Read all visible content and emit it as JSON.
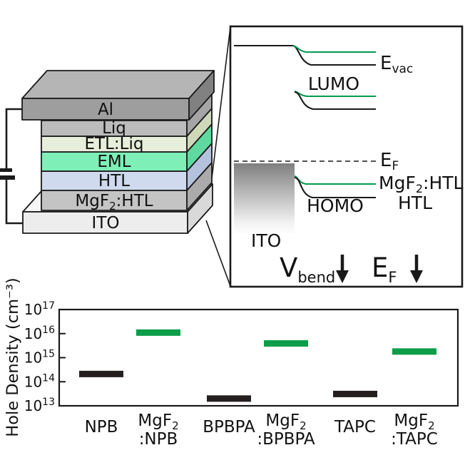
{
  "figure": {
    "background": "#ffffff"
  },
  "colors": {
    "outline": "#1a1a1a",
    "band_green": "#009b4f",
    "bar_green": "#0b9d4a",
    "bar_black": "#241e1e"
  },
  "device": {
    "layers": [
      {
        "pre": "Al",
        "sub": "",
        "post": "",
        "front": "#9e9e9e",
        "side": "#818181",
        "top": "#b5b5b5"
      },
      {
        "pre": "Liq",
        "sub": "",
        "post": "",
        "front": "#bcbcbc",
        "side": "#a5a5a5"
      },
      {
        "pre": "ETL:Liq",
        "sub": "",
        "post": "",
        "front": "#e7eed9",
        "side": "#cfd9ba"
      },
      {
        "pre": "EML",
        "sub": "",
        "post": "",
        "front": "#7defb7",
        "side": "#5fd9a0"
      },
      {
        "pre": "HTL",
        "sub": "",
        "post": "",
        "front": "#cfdaee",
        "side": "#b4c2de"
      },
      {
        "pre": "MgF",
        "sub": "2",
        "post": ":HTL",
        "front": "#c4c4c4",
        "side": "#ababab"
      },
      {
        "pre": "ITO",
        "sub": "",
        "post": "",
        "front": "#ededed",
        "side": "#d9d9d9",
        "top": "#f6f6f6"
      }
    ]
  },
  "inset": {
    "evac_pre": "E",
    "evac_sub": "vac",
    "lumo": "LUMO",
    "ef_pre": "E",
    "ef_sub": "F",
    "mgf2htl_pre": "MgF",
    "mgf2htl_sub": "2",
    "mgf2htl_post": ":HTL",
    "htl": "HTL",
    "homo": "HOMO",
    "ito": "ITO",
    "vbend_pre": "V",
    "vbend_sub": "bend",
    "ef2_pre": "E",
    "ef2_sub": "F",
    "ito_gradient_top": "#7f7f7f",
    "ito_gradient_bottom": "#fdfdfd"
  },
  "chart_data": {
    "type": "bar",
    "title": "",
    "xlabel": "",
    "ylabel": "Hole Density (cm⁻³)",
    "scale": "log",
    "ylim": [
      10000000000000.0,
      1e+17
    ],
    "grid": false,
    "legend": false,
    "y_tick_base": "10",
    "y_tick_exponents": [
      13,
      14,
      15,
      16,
      17
    ],
    "categories": [
      "NPB",
      "MgF₂:NPB",
      "BPBPA",
      "MgF₂:BPBPA",
      "TAPC",
      "MgF₂:TAPC"
    ],
    "categories_display": [
      {
        "line1_pre": "NPB",
        "line1_sub": "",
        "line2": ""
      },
      {
        "line1_pre": "MgF",
        "line1_sub": "2",
        "line2": ":NPB"
      },
      {
        "line1_pre": "BPBPA",
        "line1_sub": "",
        "line2": ""
      },
      {
        "line1_pre": "MgF",
        "line1_sub": "2",
        "line2": ":BPBPA"
      },
      {
        "line1_pre": "TAPC",
        "line1_sub": "",
        "line2": ""
      },
      {
        "line1_pre": "MgF",
        "line1_sub": "2",
        "line2": ":TAPC"
      }
    ],
    "values": [
      210000000000000.0,
      1.1e+16,
      20000000000000.0,
      3900000000000000.0,
      31000000000000.0,
      1800000000000000.0
    ],
    "bar_colors": [
      "#241e1e",
      "#0b9d4a",
      "#241e1e",
      "#0b9d4a",
      "#241e1e",
      "#0b9d4a"
    ]
  }
}
